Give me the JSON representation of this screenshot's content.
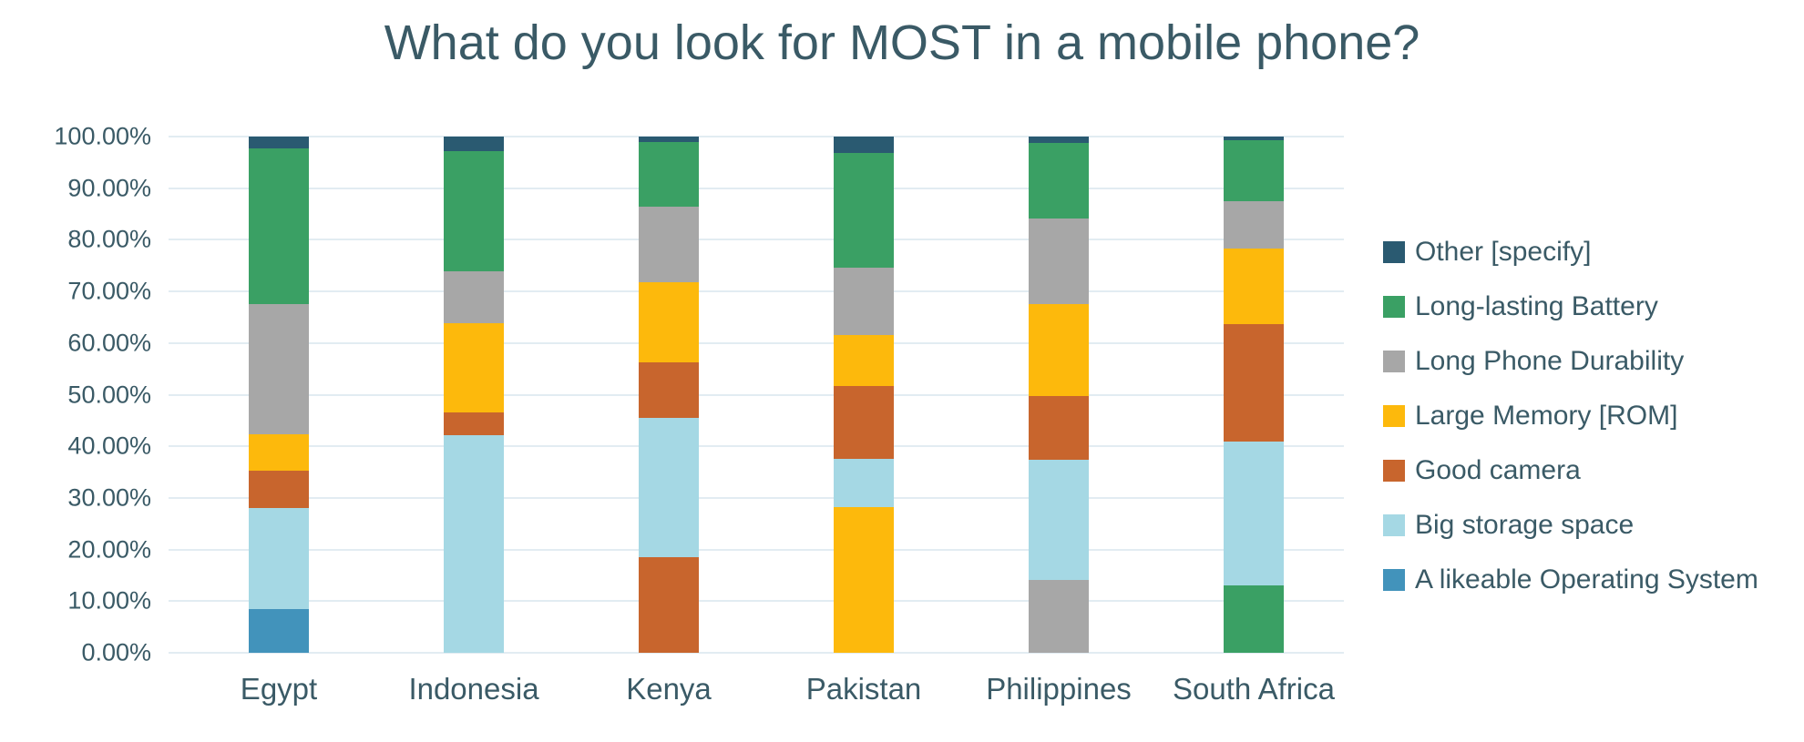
{
  "title": "What do you look for MOST in a mobile phone?",
  "colors": {
    "text": "#3A5A66",
    "gridline": "#E2ECF2",
    "other": "#2A5A71",
    "battery": "#3AA064",
    "durability": "#A7A7A7",
    "memory": "#FDB90C",
    "camera": "#C8652D",
    "storage": "#A5D8E4",
    "os": "#4293BB"
  },
  "y_axis": {
    "ticks": [
      "100.00%",
      "90.00%",
      "80.00%",
      "70.00%",
      "60.00%",
      "50.00%",
      "40.00%",
      "30.00%",
      "20.00%",
      "10.00%",
      "0.00%"
    ]
  },
  "legend": [
    {
      "label": "Other [specify]",
      "color_key": "other"
    },
    {
      "label": "Long-lasting Battery",
      "color_key": "battery"
    },
    {
      "label": "Long Phone Durability",
      "color_key": "durability"
    },
    {
      "label": "Large Memory [ROM]",
      "color_key": "memory"
    },
    {
      "label": "Good camera",
      "color_key": "camera"
    },
    {
      "label": "Big storage space",
      "color_key": "storage"
    },
    {
      "label": "A likeable Operating System",
      "color_key": "os"
    }
  ],
  "chart_data": {
    "type": "bar",
    "subtype": "100%-stacked-column",
    "title": "What do you look for MOST in a mobile phone?",
    "xlabel": "",
    "ylabel": "",
    "ylim": [
      0,
      100
    ],
    "grid": true,
    "legend_position": "right",
    "categories": [
      "Egypt",
      "Indonesia",
      "Kenya",
      "Pakistan",
      "Philippines",
      "South Africa"
    ],
    "bars": [
      {
        "country": "Egypt",
        "segments_bottom_to_top": [
          {
            "category": "A likeable Operating System",
            "color_key": "os",
            "value": 8.4
          },
          {
            "category": "Big storage space",
            "color_key": "storage",
            "value": 19.6
          },
          {
            "category": "Good camera",
            "color_key": "camera",
            "value": 7.3
          },
          {
            "category": "Large Memory [ROM]",
            "color_key": "memory",
            "value": 7.1
          },
          {
            "category": "Long Phone Durability",
            "color_key": "durability",
            "value": 25.2
          },
          {
            "category": "Long-lasting Battery",
            "color_key": "battery",
            "value": 30.2
          },
          {
            "category": "Other [specify]",
            "color_key": "other",
            "value": 2.2
          }
        ]
      },
      {
        "country": "Indonesia",
        "segments_bottom_to_top": [
          {
            "category": "Big storage space",
            "color_key": "storage",
            "value": 42.1
          },
          {
            "category": "Good camera",
            "color_key": "camera",
            "value": 4.4
          },
          {
            "category": "Large Memory [ROM]",
            "color_key": "memory",
            "value": 17.3
          },
          {
            "category": "Long Phone Durability",
            "color_key": "durability",
            "value": 10.1
          },
          {
            "category": "Long-lasting Battery",
            "color_key": "battery",
            "value": 23.3
          },
          {
            "category": "Other [specify]",
            "color_key": "other",
            "value": 2.8
          }
        ]
      },
      {
        "country": "Kenya",
        "segments_bottom_to_top": [
          {
            "category": "Good camera",
            "color_key": "camera",
            "value": 18.6
          },
          {
            "category": "Big storage space",
            "color_key": "storage",
            "value": 26.9
          },
          {
            "category": "Good camera",
            "color_key": "camera",
            "value": 10.8
          },
          {
            "category": "Large Memory [ROM]",
            "color_key": "memory",
            "value": 15.5
          },
          {
            "category": "Long Phone Durability",
            "color_key": "durability",
            "value": 14.6
          },
          {
            "category": "Long-lasting Battery",
            "color_key": "battery",
            "value": 12.5
          },
          {
            "category": "Other [specify]",
            "color_key": "other",
            "value": 1.1
          }
        ]
      },
      {
        "country": "Pakistan",
        "segments_bottom_to_top": [
          {
            "category": "Large Memory [ROM]",
            "color_key": "memory",
            "value": 28.2
          },
          {
            "category": "Big storage space",
            "color_key": "storage",
            "value": 9.3
          },
          {
            "category": "Good camera",
            "color_key": "camera",
            "value": 14.1
          },
          {
            "category": "Large Memory [ROM]",
            "color_key": "memory",
            "value": 9.9
          },
          {
            "category": "Long Phone Durability",
            "color_key": "durability",
            "value": 13.1
          },
          {
            "category": "Long-lasting Battery",
            "color_key": "battery",
            "value": 22.2
          },
          {
            "category": "Other [specify]",
            "color_key": "other",
            "value": 3.2
          }
        ]
      },
      {
        "country": "Philippines",
        "segments_bottom_to_top": [
          {
            "category": "Long Phone Durability",
            "color_key": "durability",
            "value": 14.1
          },
          {
            "category": "Big storage space",
            "color_key": "storage",
            "value": 23.3
          },
          {
            "category": "Good camera",
            "color_key": "camera",
            "value": 12.4
          },
          {
            "category": "Large Memory [ROM]",
            "color_key": "memory",
            "value": 17.8
          },
          {
            "category": "Long Phone Durability",
            "color_key": "durability",
            "value": 16.5
          },
          {
            "category": "Long-lasting Battery",
            "color_key": "battery",
            "value": 14.6
          },
          {
            "category": "Other [specify]",
            "color_key": "other",
            "value": 1.3
          }
        ]
      },
      {
        "country": "South Africa",
        "segments_bottom_to_top": [
          {
            "category": "Long-lasting Battery",
            "color_key": "battery",
            "value": 13.0
          },
          {
            "category": "Big storage space",
            "color_key": "storage",
            "value": 28.0
          },
          {
            "category": "Good camera",
            "color_key": "camera",
            "value": 22.7
          },
          {
            "category": "Large Memory [ROM]",
            "color_key": "memory",
            "value": 14.7
          },
          {
            "category": "Long Phone Durability",
            "color_key": "durability",
            "value": 9.0
          },
          {
            "category": "Long-lasting Battery",
            "color_key": "battery",
            "value": 11.9
          },
          {
            "category": "Other [specify]",
            "color_key": "other",
            "value": 0.7
          }
        ]
      }
    ]
  }
}
